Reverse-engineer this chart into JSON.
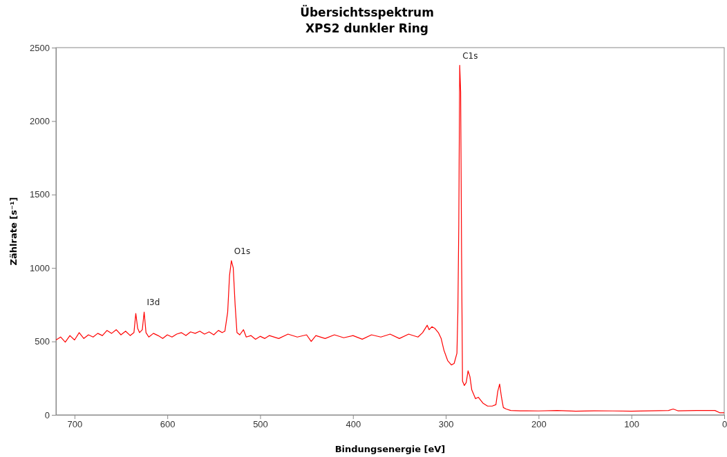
{
  "chart_data": {
    "type": "line",
    "title": "Übersichtsspektrum",
    "subtitle": "XPS2 dunkler Ring",
    "xlabel": "Bindungsenergie [eV]",
    "ylabel": "Zählrate [s⁻¹]",
    "xlim": [
      720,
      0
    ],
    "xticks": [
      700,
      600,
      500,
      400,
      300,
      200,
      100,
      0
    ],
    "ylim": [
      0,
      2500
    ],
    "yticks": [
      0,
      500,
      1000,
      1500,
      2000,
      2500
    ],
    "grid": false,
    "marker": "none",
    "line_style": "solid",
    "annotations": [
      {
        "text": "C1s",
        "x": 285,
        "y": 2380
      },
      {
        "text": "O1s",
        "x": 531,
        "y": 1050
      },
      {
        "text": "I3d",
        "x": 625,
        "y": 700
      }
    ],
    "series": [
      {
        "color": "#ff0000",
        "x": [
          720,
          715,
          710,
          705,
          700,
          695,
          690,
          685,
          680,
          675,
          670,
          665,
          660,
          655,
          650,
          645,
          640,
          636,
          634,
          632,
          630,
          627,
          625,
          623,
          620,
          615,
          610,
          605,
          600,
          595,
          590,
          585,
          580,
          575,
          570,
          565,
          560,
          555,
          550,
          545,
          541,
          538,
          535,
          533,
          531,
          529,
          527,
          525,
          522,
          518,
          515,
          510,
          505,
          500,
          495,
          490,
          480,
          470,
          460,
          450,
          445,
          440,
          430,
          420,
          410,
          400,
          390,
          380,
          370,
          360,
          350,
          340,
          330,
          325,
          320,
          318,
          315,
          312,
          308,
          305,
          302,
          298,
          294,
          291,
          288,
          287,
          286,
          285,
          284,
          283,
          282,
          280,
          278,
          276,
          274,
          272,
          268,
          265,
          260,
          255,
          250,
          246,
          244,
          242,
          240,
          238,
          235,
          230,
          220,
          200,
          180,
          160,
          140,
          120,
          100,
          80,
          60,
          55,
          50,
          30,
          10,
          5,
          0
        ],
        "values": [
          510,
          530,
          495,
          540,
          510,
          560,
          520,
          545,
          530,
          555,
          540,
          575,
          555,
          580,
          545,
          570,
          540,
          560,
          690,
          590,
          560,
          580,
          700,
          560,
          530,
          555,
          540,
          520,
          545,
          530,
          550,
          560,
          540,
          565,
          555,
          570,
          550,
          565,
          545,
          575,
          560,
          570,
          700,
          950,
          1050,
          1000,
          750,
          560,
          545,
          580,
          530,
          540,
          515,
          535,
          520,
          540,
          520,
          550,
          530,
          545,
          500,
          540,
          520,
          545,
          525,
          540,
          515,
          545,
          530,
          550,
          520,
          550,
          530,
          560,
          610,
          580,
          600,
          590,
          560,
          520,
          440,
          370,
          340,
          350,
          420,
          700,
          1300,
          2380,
          2200,
          1100,
          230,
          200,
          220,
          300,
          260,
          170,
          110,
          120,
          80,
          60,
          60,
          70,
          160,
          210,
          120,
          50,
          40,
          30,
          28,
          27,
          30,
          25,
          28,
          27,
          25,
          28,
          30,
          40,
          28,
          30,
          30,
          15,
          15
        ]
      }
    ]
  }
}
